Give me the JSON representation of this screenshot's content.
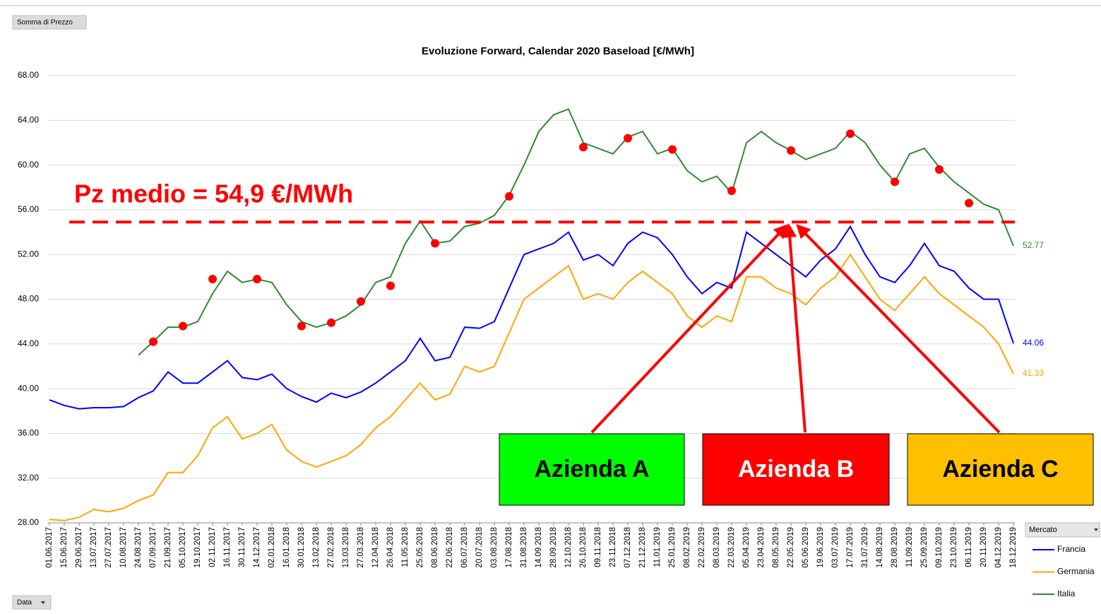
{
  "ui": {
    "top_button": "Somma di Prezzo",
    "bottom_button": "Data",
    "legend_title": "Mercato"
  },
  "chart_data": {
    "type": "line",
    "title": "Evoluzione Forward, Calendar 2020 Baseload [€/MWh]",
    "categories": [
      "01.06.2017",
      "15.06.2017",
      "29.06.2017",
      "13.07.2017",
      "27.07.2017",
      "10.08.2017",
      "24.08.2017",
      "07.09.2017",
      "21.09.2017",
      "05.10.2017",
      "19.10.2017",
      "02.11.2017",
      "16.11.2017",
      "30.11.2017",
      "14.12.2017",
      "02.01.2018",
      "16.01.2018",
      "30.01.2018",
      "13.02.2018",
      "27.02.2018",
      "13.03.2018",
      "27.03.2018",
      "12.04.2018",
      "26.04.2018",
      "11.05.2018",
      "25.05.2018",
      "08.06.2018",
      "22.06.2018",
      "06.07.2018",
      "20.07.2018",
      "03.08.2018",
      "17.08.2018",
      "31.08.2018",
      "14.09.2018",
      "28.09.2018",
      "12.10.2018",
      "26.10.2018",
      "09.11.2018",
      "23.11.2018",
      "07.12.2018",
      "21.12.2018",
      "11.01.2019",
      "25.01.2019",
      "08.02.2019",
      "22.02.2019",
      "08.03.2019",
      "22.03.2019",
      "05.04.2019",
      "23.04.2019",
      "08.05.2019",
      "22.05.2019",
      "05.06.2019",
      "19.06.2019",
      "03.07.2019",
      "17.07.2019",
      "31.07.2019",
      "14.08.2019",
      "28.08.2019",
      "11.09.2019",
      "25.09.2019",
      "09.10.2019",
      "23.10.2019",
      "06.11.2019",
      "20.11.2019",
      "04.12.2019",
      "18.12.2019"
    ],
    "series": [
      {
        "name": "Francia",
        "color": "#0000ff",
        "values": [
          39,
          38.5,
          38.2,
          38.3,
          38.3,
          38.4,
          39.2,
          39.8,
          41.5,
          40.5,
          40.5,
          41.5,
          42.5,
          41,
          40.8,
          41.3,
          40,
          39.3,
          38.8,
          39.6,
          39.2,
          39.7,
          40.5,
          41.5,
          42.5,
          44.5,
          42.5,
          42.8,
          45.5,
          45.4,
          46,
          49,
          52,
          52.5,
          53,
          54,
          51.5,
          52,
          51,
          53,
          54,
          53.5,
          52,
          50,
          48.5,
          49.5,
          49,
          54,
          53,
          52,
          51,
          50,
          51.5,
          52.5,
          54.5,
          52,
          50,
          49.5,
          51,
          53,
          51,
          50.5,
          49,
          48,
          48,
          44.06
        ]
      },
      {
        "name": "Germania",
        "color": "#ffa500",
        "values": [
          28.3,
          28.2,
          28.5,
          29.2,
          29,
          29.3,
          30,
          30.5,
          32.5,
          32.5,
          34,
          36.5,
          37.5,
          35.5,
          36,
          36.8,
          34.5,
          33.5,
          33,
          33.5,
          34,
          35,
          36.5,
          37.5,
          39,
          40.5,
          39,
          39.5,
          42,
          41.5,
          42,
          45,
          48,
          49,
          50,
          51,
          48,
          48.5,
          48,
          49.5,
          50.5,
          49.5,
          48.5,
          46.5,
          45.5,
          46.5,
          46,
          50,
          50,
          49,
          48.5,
          47.5,
          49,
          50,
          52,
          50,
          48,
          47,
          48.5,
          50,
          48.5,
          47.5,
          46.5,
          45.5,
          44,
          41.33
        ]
      },
      {
        "name": "Italia",
        "color": "#2e8b2e",
        "values": [
          null,
          null,
          null,
          null,
          null,
          null,
          43,
          44.2,
          45.5,
          45.5,
          46,
          48.5,
          50.5,
          49.5,
          49.8,
          49.5,
          47.5,
          46,
          45.5,
          45.9,
          46.5,
          47.5,
          49.5,
          50,
          53,
          55,
          53,
          53.2,
          54.5,
          54.8,
          55.5,
          57.3,
          60,
          63,
          64.5,
          65,
          62,
          61.5,
          61,
          62.5,
          63,
          61,
          61.5,
          59.5,
          58.5,
          59,
          57.5,
          62,
          63,
          62,
          61.3,
          60.5,
          61,
          61.5,
          63,
          62,
          60,
          58.5,
          61,
          61.5,
          59.8,
          58.5,
          57.5,
          56.5,
          56,
          52.77
        ]
      }
    ],
    "markers": {
      "color": "#ff0000",
      "values": [
        null,
        null,
        null,
        null,
        null,
        null,
        null,
        44.2,
        null,
        45.6,
        null,
        49.8,
        null,
        null,
        49.8,
        null,
        null,
        45.6,
        null,
        45.9,
        null,
        47.8,
        null,
        49.2,
        null,
        null,
        53,
        null,
        null,
        null,
        null,
        57.2,
        null,
        null,
        null,
        null,
        61.6,
        null,
        null,
        62.4,
        null,
        null,
        61.4,
        null,
        null,
        null,
        57.7,
        null,
        null,
        null,
        61.3,
        null,
        null,
        null,
        62.8,
        null,
        null,
        58.5,
        null,
        null,
        59.6,
        null,
        56.6,
        null,
        null,
        null
      ]
    },
    "reference_line": {
      "value": 54.9,
      "label": "Pz medio = 54,9 €/MWh",
      "color": "#ff0000"
    },
    "annotations": [
      {
        "text": "Azienda A",
        "color": "#00ff00",
        "text_color": "#000000"
      },
      {
        "text": "Azienda B",
        "color": "#ff0000",
        "text_color": "#ffffff"
      },
      {
        "text": "Azienda C",
        "color": "#ffc000",
        "text_color": "#000000"
      }
    ],
    "ylim": [
      28,
      68
    ],
    "yticks": [
      {
        "value": 28,
        "label": "28.00"
      },
      {
        "value": 32,
        "label": "32.00"
      },
      {
        "value": 36,
        "label": "36.00"
      },
      {
        "value": 40,
        "label": "40.00"
      },
      {
        "value": 44,
        "label": "44.00"
      },
      {
        "value": 48,
        "label": "48.00"
      },
      {
        "value": 52,
        "label": "52.00"
      },
      {
        "value": 56,
        "label": "56.00"
      },
      {
        "value": 60,
        "label": "60.00"
      },
      {
        "value": 64,
        "label": "64.00"
      },
      {
        "value": 68,
        "label": "68.00"
      }
    ],
    "grid": true,
    "legend": "bottom-right"
  }
}
